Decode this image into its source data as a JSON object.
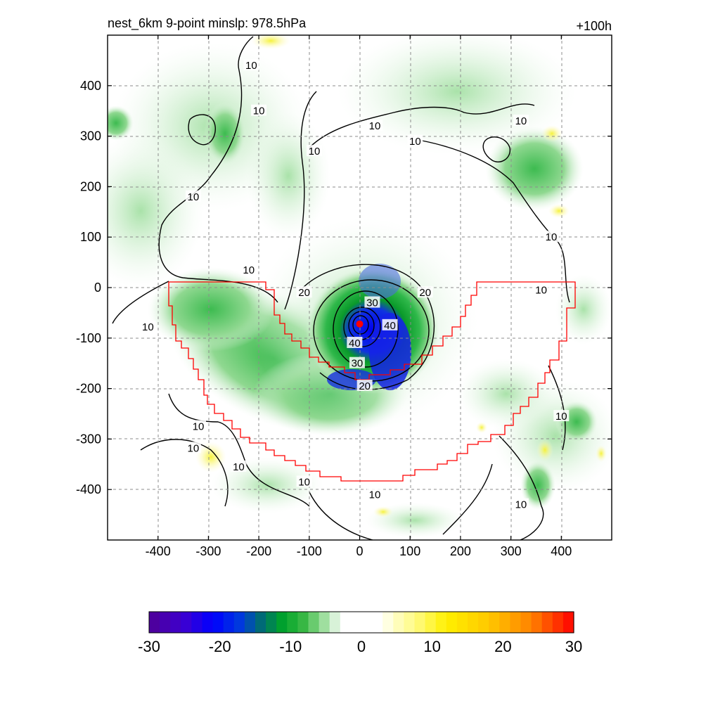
{
  "title_left": "nest_6km  9-point minslp: 978.5hPa",
  "title_right": "+100h",
  "colors": {
    "frame": "#000000",
    "grid": "#8c8c8c",
    "boundary": "#ff0000",
    "center": "#ff0000",
    "contour": "#000000"
  },
  "chart_data": {
    "type": "heatmap",
    "xlim": [
      -500,
      500
    ],
    "ylim": [
      -500,
      500
    ],
    "x_ticks": [
      -400,
      -300,
      -200,
      -100,
      0,
      100,
      200,
      300,
      400
    ],
    "y_ticks": [
      400,
      300,
      200,
      100,
      0,
      -100,
      -200,
      -300,
      -400
    ],
    "x_tick_labels": [
      "-400",
      "-300",
      "-200",
      "-100",
      "0",
      "100",
      "200",
      "300",
      "400"
    ],
    "y_tick_labels": [
      "400",
      "300",
      "200",
      "100",
      "0",
      "-100",
      "-200",
      "-300",
      "-400"
    ],
    "grid": true,
    "storm_center": {
      "x": 0,
      "y": -72
    },
    "contour_labels": [
      {
        "text": "10",
        "x": -220,
        "y": 35
      },
      {
        "text": "10",
        "x": -330,
        "y": 180
      },
      {
        "text": "10",
        "x": -215,
        "y": 440
      },
      {
        "text": "10",
        "x": -200,
        "y": 350
      },
      {
        "text": "10",
        "x": -90,
        "y": 270
      },
      {
        "text": "10",
        "x": 30,
        "y": 320
      },
      {
        "text": "10",
        "x": 110,
        "y": 290
      },
      {
        "text": "10",
        "x": 320,
        "y": 330
      },
      {
        "text": "10",
        "x": 380,
        "y": 100
      },
      {
        "text": "10",
        "x": 360,
        "y": -5
      },
      {
        "text": "10",
        "x": -420,
        "y": -78
      },
      {
        "text": "10",
        "x": -320,
        "y": -275
      },
      {
        "text": "10",
        "x": -330,
        "y": -318
      },
      {
        "text": "10",
        "x": -240,
        "y": -355
      },
      {
        "text": "10",
        "x": -110,
        "y": -385
      },
      {
        "text": "10",
        "x": 30,
        "y": -410
      },
      {
        "text": "10",
        "x": 400,
        "y": -255
      },
      {
        "text": "10",
        "x": 320,
        "y": -430
      },
      {
        "text": "20",
        "x": -110,
        "y": -10
      },
      {
        "text": "20",
        "x": 130,
        "y": -10
      },
      {
        "text": "20",
        "x": 10,
        "y": -195
      },
      {
        "text": "30",
        "x": 25,
        "y": -30
      },
      {
        "text": "30",
        "x": -5,
        "y": -150
      },
      {
        "text": "40",
        "x": 60,
        "y": -75
      },
      {
        "text": "40",
        "x": -10,
        "y": -110
      }
    ],
    "colorbar": {
      "min": -30,
      "max": 30,
      "step": 1.5,
      "tick_values": [
        -30,
        -20,
        -10,
        0,
        10,
        20,
        30
      ],
      "tick_labels": [
        "-30",
        "-20",
        "-10",
        "0",
        "10",
        "20",
        "30"
      ],
      "white_range": [
        -3,
        3
      ]
    }
  }
}
